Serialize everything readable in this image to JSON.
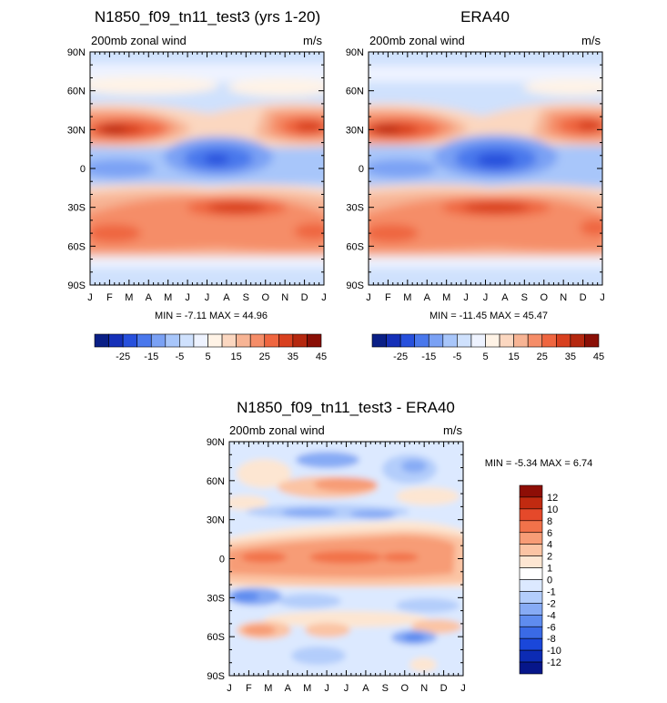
{
  "chart_data": [
    {
      "type": "heatmap",
      "title": "N1850_f09_tn11_test3 (yrs 1-20)",
      "left_label": "200mb zonal wind",
      "right_label": "m/s",
      "x_tick_labels": [
        "J",
        "F",
        "M",
        "A",
        "M",
        "J",
        "J",
        "A",
        "S",
        "O",
        "N",
        "D",
        "J"
      ],
      "y_tick_labels": [
        "90N",
        "60N",
        "30N",
        "0",
        "30S",
        "60S",
        "90S"
      ],
      "xlim": [
        0,
        12
      ],
      "ylim": [
        -90,
        90
      ],
      "stats": "MIN =  -7.11 MAX =  44.96",
      "min": -7.11,
      "max": 44.96,
      "colorbar": {
        "orientation": "horizontal",
        "levels": [
          -30,
          -25,
          -20,
          -15,
          -10,
          -5,
          0,
          5,
          10,
          15,
          20,
          25,
          30,
          35,
          40,
          45
        ],
        "tick_labels": [
          "-25",
          "-15",
          "-5",
          "5",
          "15",
          "25",
          "35",
          "45"
        ]
      }
    },
    {
      "type": "heatmap",
      "title": "ERA40",
      "left_label": "200mb zonal wind",
      "right_label": "m/s",
      "x_tick_labels": [
        "J",
        "F",
        "M",
        "A",
        "M",
        "J",
        "J",
        "A",
        "S",
        "O",
        "N",
        "D",
        "J"
      ],
      "y_tick_labels": [
        "90N",
        "60N",
        "30N",
        "0",
        "30S",
        "60S",
        "90S"
      ],
      "xlim": [
        0,
        12
      ],
      "ylim": [
        -90,
        90
      ],
      "stats": "MIN = -11.45 MAX =  45.47",
      "min": -11.45,
      "max": 45.47,
      "colorbar": {
        "orientation": "horizontal",
        "levels": [
          -30,
          -25,
          -20,
          -15,
          -10,
          -5,
          0,
          5,
          10,
          15,
          20,
          25,
          30,
          35,
          40,
          45
        ],
        "tick_labels": [
          "-25",
          "-15",
          "-5",
          "5",
          "15",
          "25",
          "35",
          "45"
        ]
      }
    },
    {
      "type": "heatmap",
      "title": "N1850_f09_tn11_test3 - ERA40",
      "left_label": "200mb zonal wind",
      "right_label": "m/s",
      "x_tick_labels": [
        "J",
        "F",
        "M",
        "A",
        "M",
        "J",
        "J",
        "A",
        "S",
        "O",
        "N",
        "D",
        "J"
      ],
      "y_tick_labels": [
        "90N",
        "60N",
        "30N",
        "0",
        "30S",
        "60S",
        "90S"
      ],
      "xlim": [
        0,
        12
      ],
      "ylim": [
        -90,
        90
      ],
      "stats": "MIN =  -5.34 MAX =   6.74",
      "min": -5.34,
      "max": 6.74,
      "colorbar": {
        "orientation": "vertical",
        "levels": [
          12,
          10,
          8,
          6,
          4,
          2,
          1,
          0,
          -1,
          -2,
          -4,
          -6,
          -8,
          -10,
          -12
        ],
        "tick_labels": [
          "12",
          "10",
          "8",
          "6",
          "4",
          "2",
          "1",
          "0",
          "-1",
          "-2",
          "-4",
          "-6",
          "-8",
          "-10",
          "-12"
        ]
      }
    }
  ],
  "colors": {
    "bar16": [
      "#0a1f86",
      "#1530b8",
      "#2750dc",
      "#4a78ec",
      "#7aa1f4",
      "#a8c6fa",
      "#cfe1fd",
      "#eef3ff",
      "#fff3e6",
      "#fbd7c0",
      "#f7b494",
      "#f58d68",
      "#ef6640",
      "#d8401f",
      "#b5280f",
      "#8a0f06"
    ],
    "bar16_diff": [
      "#06168a",
      "#0c2bb4",
      "#1a47da",
      "#3a6ae6",
      "#5f8cef",
      "#87abf5",
      "#b3cdfb",
      "#dce9ff",
      "#ffffff",
      "#fde6d2",
      "#fbc4a4",
      "#f79c76",
      "#f2724a",
      "#e5492a",
      "#c12a10",
      "#8e0e06"
    ],
    "axis": "#000000",
    "background": "#ffffff"
  }
}
